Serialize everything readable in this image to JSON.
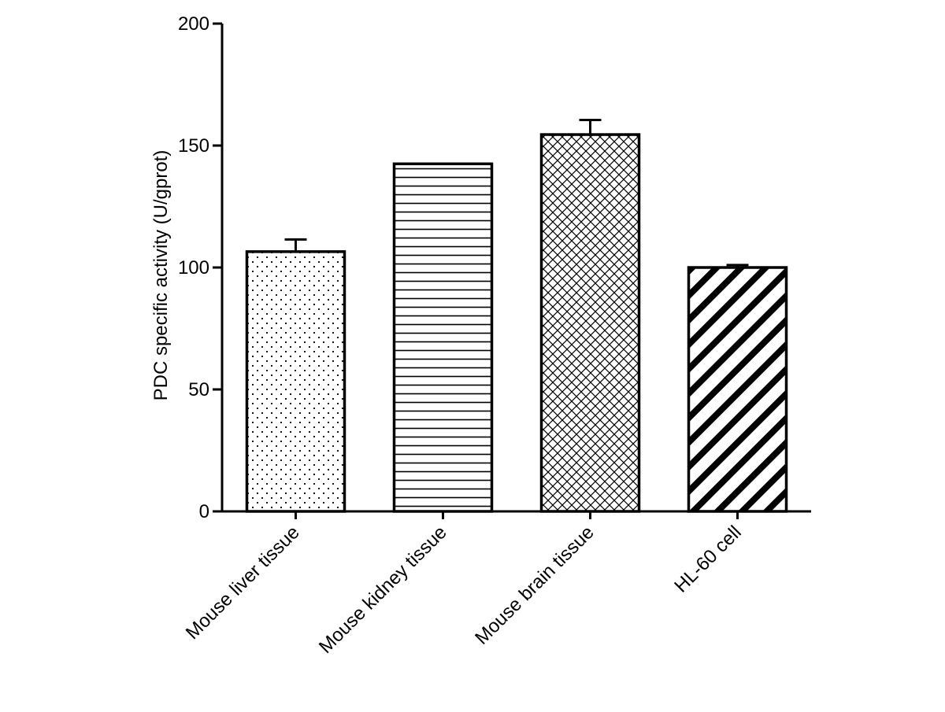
{
  "chart_data": {
    "type": "bar",
    "title": "",
    "xlabel": "",
    "ylabel": "PDC specific activity (U/gprot)",
    "ylim": [
      0,
      200
    ],
    "yticks": [
      0,
      50,
      100,
      150,
      200
    ],
    "grid": false,
    "legend": "none",
    "categories": [
      "Mouse liver tissue",
      "Mouse kidney tissue",
      "Mouse brain tissue",
      "HL-60 cell"
    ],
    "values": [
      106.5,
      142.5,
      154.5,
      100.0
    ],
    "error_upper": [
      5,
      0,
      6,
      1
    ],
    "patterns": [
      "dots",
      "horizontal-lines",
      "crosshatch",
      "diagonal-stripes"
    ],
    "colors": {
      "bar_stroke": "#000000",
      "bar_fill": "#ffffff",
      "axis": "#000000"
    }
  }
}
